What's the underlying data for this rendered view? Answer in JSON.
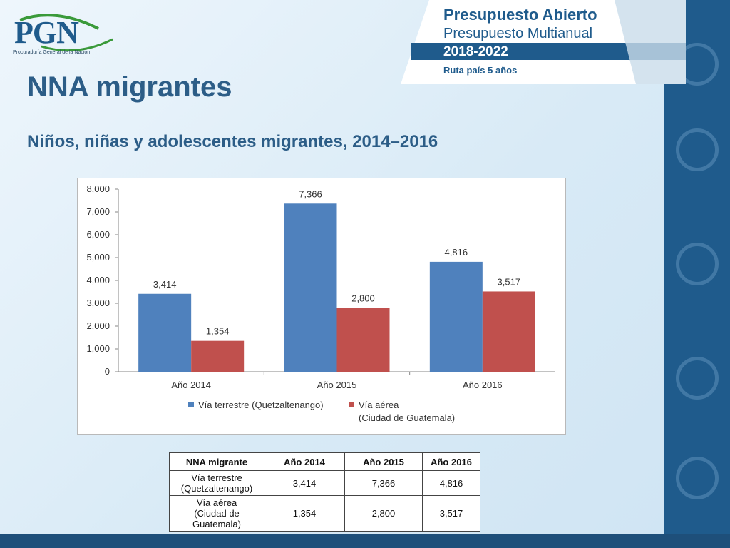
{
  "header": {
    "logo_text": "PGN",
    "logo_subtitle": "Procuraduría General de la Nación",
    "banner_title": "Presupuesto Abierto",
    "banner_subtitle": "Presupuesto Multianual",
    "banner_years": "2018-2022",
    "banner_route": "Ruta país 5 años"
  },
  "title": "NNA migrantes",
  "subtitle": "Niños, niñas y adolescentes migrantes, 2014–2016",
  "colors": {
    "series_terrestre": "#4f81bd",
    "series_aerea": "#c0504d",
    "brand_blue": "#1f5b8c"
  },
  "chart_data": {
    "type": "bar",
    "categories": [
      "Año 2014",
      "Año 2015",
      "Año 2016"
    ],
    "series": [
      {
        "name": "Vía terrestre (Quetzaltenango)",
        "values": [
          3414,
          7366,
          4816
        ]
      },
      {
        "name": "Vía aérea (Ciudad de Guatemala)",
        "values": [
          1354,
          2800,
          3517
        ]
      }
    ],
    "data_labels": [
      [
        "3,414",
        "7,366",
        "4,816"
      ],
      [
        "1,354",
        "2,800",
        "3,517"
      ]
    ],
    "yticks": [
      0,
      1000,
      2000,
      3000,
      4000,
      5000,
      6000,
      7000,
      8000
    ],
    "ytick_labels": [
      "0",
      "1,000",
      "2,000",
      "3,000",
      "4,000",
      "5,000",
      "6,000",
      "7,000",
      "8,000"
    ],
    "legend_lines": [
      [
        "Vía terrestre (Quetzaltenango)"
      ],
      [
        "Vía aérea",
        "(Ciudad de Guatemala)"
      ]
    ],
    "ylim": [
      0,
      8000
    ],
    "legend_position": "bottom",
    "grid": false
  },
  "table": {
    "headers": [
      "NNA migrante",
      "Año 2014",
      "Año 2015",
      "Año 2016"
    ],
    "rows": [
      {
        "label_lines": [
          "Vía terrestre",
          "(Quetzaltenango)"
        ],
        "values": [
          "3,414",
          "7,366",
          "4,816"
        ]
      },
      {
        "label_lines": [
          "Vía aérea",
          "(Ciudad de",
          "Guatemala)"
        ],
        "values": [
          "1,354",
          "2,800",
          "3,517"
        ]
      }
    ]
  }
}
